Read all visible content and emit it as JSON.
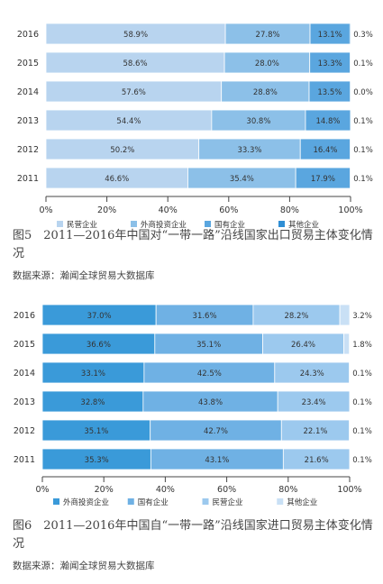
{
  "chart_data": [
    {
      "type": "bar",
      "orientation": "horizontal",
      "stacked": true,
      "categories": [
        "2016",
        "2015",
        "2014",
        "2013",
        "2012",
        "2011"
      ],
      "series": [
        {
          "name": "民营企业",
          "color": "#b8d4ef",
          "values": [
            58.9,
            58.6,
            57.6,
            54.4,
            50.2,
            46.6
          ],
          "labels": [
            "58.9%",
            "58.6%",
            "57.6%",
            "54.4%",
            "50.2%",
            "46.6%"
          ]
        },
        {
          "name": "外商投资企业",
          "color": "#8cc0e8",
          "values": [
            27.8,
            28.0,
            28.8,
            30.8,
            33.3,
            35.4
          ],
          "labels": [
            "27.8%",
            "28.0%",
            "28.8%",
            "30.8%",
            "33.3%",
            "35.4%"
          ]
        },
        {
          "name": "国有企业",
          "color": "#5aa6df",
          "values": [
            13.1,
            13.3,
            13.5,
            14.8,
            16.4,
            17.9
          ],
          "labels": [
            "13.1%",
            "13.3%",
            "13.5%",
            "14.8%",
            "16.4%",
            "17.9%"
          ]
        },
        {
          "name": "其他企业",
          "color": "#2f8ed4",
          "values": [
            0.3,
            0.1,
            0.0,
            0.1,
            0.1,
            0.1
          ],
          "labels": [
            "0.3%",
            "0.1%",
            "0.0%",
            "0.1%",
            "0.1%",
            "0.1%"
          ]
        }
      ],
      "xlim": [
        0,
        100
      ],
      "xticks": [
        "0%",
        "20%",
        "40%",
        "60%",
        "80%",
        "100%"
      ],
      "legend_position": "bottom",
      "grid": false
    },
    {
      "type": "bar",
      "orientation": "horizontal",
      "stacked": true,
      "categories": [
        "2016",
        "2015",
        "2014",
        "2013",
        "2012",
        "2011"
      ],
      "series": [
        {
          "name": "外商投资企业",
          "color": "#3a9ad9",
          "values": [
            37.0,
            36.6,
            33.1,
            32.8,
            35.1,
            35.3
          ],
          "labels": [
            "37.0%",
            "36.6%",
            "33.1%",
            "32.8%",
            "35.1%",
            "35.3%"
          ]
        },
        {
          "name": "国有企业",
          "color": "#6fb1e4",
          "values": [
            31.6,
            35.1,
            42.5,
            43.8,
            42.7,
            43.1
          ],
          "labels": [
            "31.6%",
            "35.1%",
            "42.5%",
            "43.8%",
            "42.7%",
            "43.1%"
          ]
        },
        {
          "name": "民营企业",
          "color": "#9cc9ee",
          "values": [
            28.2,
            26.4,
            24.3,
            23.4,
            22.1,
            21.6
          ],
          "labels": [
            "28.2%",
            "26.4%",
            "24.3%",
            "23.4%",
            "22.1%",
            "21.6%"
          ]
        },
        {
          "name": "其他企业",
          "color": "#c9e0f5",
          "values": [
            3.2,
            1.8,
            0.1,
            0.1,
            0.1,
            0.1
          ],
          "labels": [
            "3.2%",
            "1.8%",
            "0.1%",
            "0.1%",
            "0.1%",
            "0.1%"
          ]
        }
      ],
      "xlim": [
        0,
        100
      ],
      "xticks": [
        "0%",
        "20%",
        "40%",
        "60%",
        "80%",
        "100%"
      ],
      "legend_position": "bottom",
      "grid": false
    }
  ],
  "captions": [
    {
      "title": "图5　2011—2016年中国对“一带一路”沿线国家出口贸易主体变化情况",
      "source": "数据来源：瀚闻全球贸易大数据库"
    },
    {
      "title": "图6　2011—2016年中国自“一带一路”沿线国家进口贸易主体变化情况",
      "source": "数据来源：瀚闻全球贸易大数据库"
    }
  ]
}
